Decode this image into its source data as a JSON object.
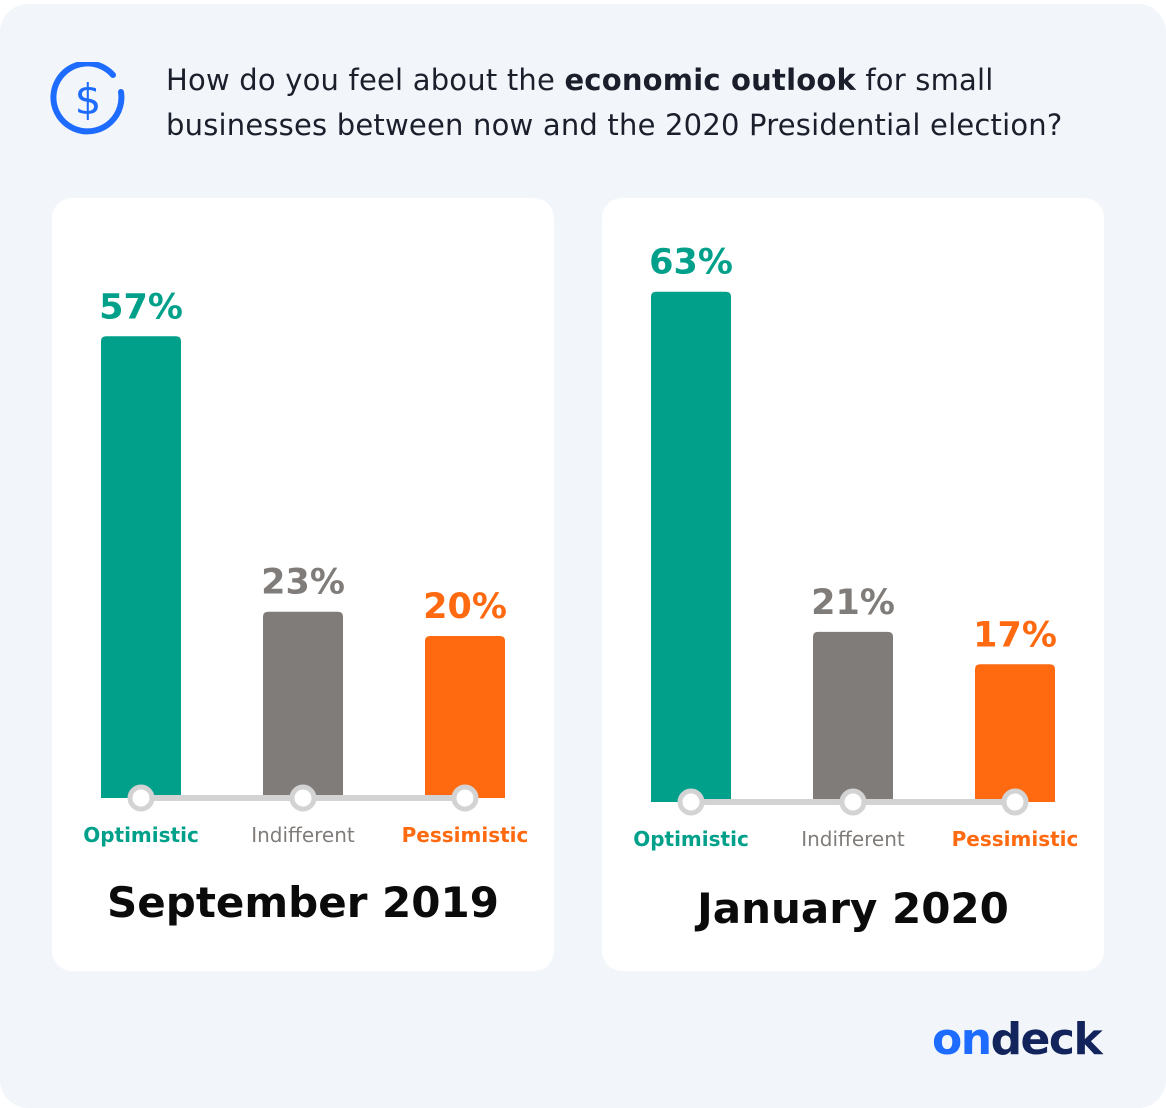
{
  "question": {
    "before": "How do you feel about the ",
    "bold": "economic outlook",
    "after_line1": " for small",
    "line2": "businesses between now and the 2020 Presidential election?"
  },
  "icon": "dollar-circle-icon",
  "brand": {
    "part1": "on",
    "part2": "deck"
  },
  "colors": {
    "optimistic": "#00a08a",
    "indifferent": "#807c79",
    "pessimistic": "#ff6a10",
    "axis": "#d3d3d3"
  },
  "chart_data": [
    {
      "type": "bar",
      "title": "September 2019",
      "categories": [
        "Optimistic",
        "Indifferent",
        "Pessimistic"
      ],
      "values": [
        57,
        23,
        20
      ],
      "value_labels": [
        "57%",
        "23%",
        "20%"
      ],
      "unit": "%",
      "ylim": [
        0,
        100
      ],
      "grid": false
    },
    {
      "type": "bar",
      "title": "January 2020",
      "categories": [
        "Optimistic",
        "Indifferent",
        "Pessimistic"
      ],
      "values": [
        63,
        21,
        17
      ],
      "value_labels": [
        "63%",
        "21%",
        "17%"
      ],
      "unit": "%",
      "ylim": [
        0,
        100
      ],
      "grid": false
    }
  ]
}
